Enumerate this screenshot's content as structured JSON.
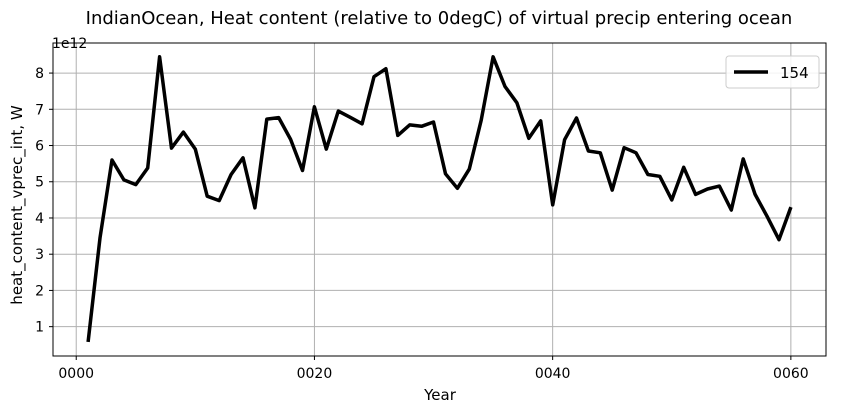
{
  "chart_data": {
    "type": "line",
    "title": "IndianOcean, Heat content (relative to 0degC) of virtual precip entering ocean",
    "xlabel": "Year",
    "ylabel": "heat_content_vprec_int, W",
    "y_offset_label": "1e12",
    "xlim": [
      -1.95,
      62.95
    ],
    "ylim": [
      0.19,
      8.83
    ],
    "x_ticks": [
      0,
      20,
      40,
      60
    ],
    "x_tick_labels": [
      "0000",
      "0020",
      "0040",
      "0060"
    ],
    "y_ticks": [
      1,
      2,
      3,
      4,
      5,
      6,
      7,
      8
    ],
    "y_tick_labels": [
      "1",
      "2",
      "3",
      "4",
      "5",
      "6",
      "7",
      "8"
    ],
    "grid": true,
    "legend": {
      "position": "top-right",
      "entries": [
        "154"
      ]
    },
    "series": [
      {
        "name": "154",
        "color": "#000000",
        "x": [
          1,
          2,
          3,
          4,
          5,
          6,
          7,
          8,
          9,
          10,
          11,
          12,
          13,
          14,
          15,
          16,
          17,
          18,
          19,
          20,
          21,
          22,
          23,
          24,
          25,
          26,
          27,
          28,
          29,
          30,
          31,
          32,
          33,
          34,
          35,
          36,
          37,
          38,
          39,
          40,
          41,
          42,
          43,
          44,
          45,
          46,
          47,
          48,
          49,
          50,
          51,
          52,
          53,
          54,
          55,
          56,
          57,
          58,
          59,
          60
        ],
        "values": [
          0.58,
          3.45,
          5.6,
          5.05,
          4.92,
          5.38,
          8.45,
          5.93,
          6.37,
          5.9,
          4.6,
          4.48,
          5.2,
          5.66,
          4.28,
          6.73,
          6.77,
          6.17,
          5.31,
          7.07,
          5.9,
          6.95,
          6.78,
          6.6,
          7.9,
          8.12,
          6.28,
          6.57,
          6.53,
          6.65,
          5.22,
          4.82,
          5.35,
          6.7,
          8.45,
          7.63,
          7.18,
          6.2,
          6.68,
          4.36,
          6.16,
          6.76,
          5.85,
          5.8,
          4.77,
          5.94,
          5.8,
          5.2,
          5.15,
          4.5,
          5.4,
          4.65,
          4.8,
          4.88,
          4.22,
          5.63,
          4.65,
          4.05,
          3.4,
          4.3
        ]
      }
    ]
  }
}
